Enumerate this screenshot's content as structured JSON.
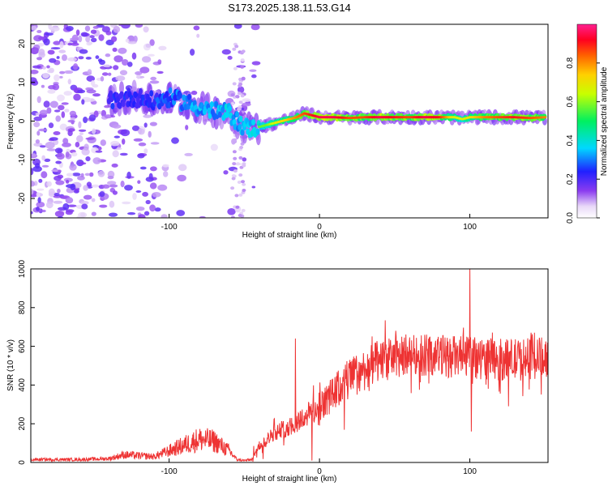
{
  "figure": {
    "title": "S173.2025.138.11.53.G14"
  },
  "chart_data": [
    {
      "type": "heatmap",
      "title": "S173.2025.138.11.53.G14",
      "xlabel": "Height of straight line (km)",
      "ylabel": "Frequency (Hz)",
      "xlim": [
        -192,
        152
      ],
      "ylim": [
        -25,
        25
      ],
      "x_ticks": [
        -100,
        0,
        100
      ],
      "x_tick_labels": [
        "-100",
        "0",
        "100"
      ],
      "y_ticks": [
        -20,
        -10,
        0,
        10,
        20
      ],
      "y_tick_labels": [
        "-20",
        "-10",
        "0",
        "10",
        "20"
      ],
      "grid": false,
      "colorbar": {
        "label": "Normalized spectral amplitude",
        "range": [
          0,
          1
        ],
        "ticks": [
          0.0,
          0.2,
          0.4,
          0.6,
          0.8
        ],
        "tick_labels": [
          "0.0",
          "0.2",
          "0.4",
          "0.6",
          "0.8"
        ],
        "colormap": "rainbow (white-violet-blue-cyan-green-yellow-orange-red-magenta)"
      },
      "ridge": {
        "description": "dominant frequency ridge vs height",
        "x": [
          -140,
          -130,
          -120,
          -110,
          -100,
          -90,
          -80,
          -70,
          -60,
          -55,
          -50,
          -45,
          -40,
          -35,
          -30,
          -25,
          -20,
          -15,
          -10,
          -5,
          0,
          10,
          20,
          30,
          40,
          50,
          60,
          70,
          80,
          90,
          95,
          100,
          110,
          120,
          130,
          140,
          150
        ],
        "freq": [
          5,
          6,
          6,
          5,
          6,
          5,
          3.5,
          2.5,
          2,
          0,
          -1.5,
          -2,
          -1.5,
          -1,
          -0.5,
          0,
          0.5,
          1,
          2,
          1.5,
          1,
          1,
          0.8,
          1,
          1,
          1,
          1,
          1,
          1,
          1,
          0.5,
          1,
          1,
          1,
          1,
          0.8,
          1
        ],
        "amplitude": [
          0.3,
          0.3,
          0.3,
          0.35,
          0.4,
          0.45,
          0.5,
          0.5,
          0.55,
          0.5,
          0.55,
          0.55,
          0.6,
          0.6,
          0.7,
          0.75,
          0.8,
          0.85,
          0.9,
          0.95,
          1.0,
          1.0,
          0.9,
          0.9,
          1.0,
          0.95,
          0.9,
          1.0,
          0.95,
          0.7,
          0.7,
          0.75,
          0.85,
          0.9,
          0.95,
          0.9,
          0.85
        ]
      }
    },
    {
      "type": "line",
      "xlabel": "Height of straight line (km)",
      "ylabel": "SNR (10 * v/v)",
      "xlim": [
        -192,
        152
      ],
      "ylim": [
        0,
        1000
      ],
      "x_ticks": [
        -100,
        0,
        100
      ],
      "x_tick_labels": [
        "-100",
        "0",
        "100"
      ],
      "y_ticks": [
        0,
        200,
        400,
        600,
        800,
        1000
      ],
      "y_tick_labels": [
        "0",
        "200",
        "400",
        "600",
        "800",
        "1000"
      ],
      "grid": false,
      "color": "#ee3333",
      "envelope": {
        "x": [
          -192,
          -160,
          -140,
          -130,
          -110,
          -100,
          -90,
          -80,
          -70,
          -60,
          -55,
          -50,
          -45,
          -40,
          -30,
          -20,
          -10,
          0,
          10,
          20,
          30,
          40,
          50,
          60,
          80,
          100,
          102,
          104,
          120,
          140,
          152
        ],
        "base": [
          15,
          15,
          20,
          40,
          30,
          60,
          90,
          120,
          110,
          60,
          15,
          10,
          15,
          80,
          150,
          180,
          230,
          280,
          350,
          420,
          470,
          510,
          530,
          550,
          540,
          530,
          530,
          530,
          520,
          520,
          540
        ]
      },
      "spikes": [
        {
          "x": 100,
          "y": 1000
        },
        {
          "x": 101,
          "y": 160
        },
        {
          "x": -16,
          "y": 640
        },
        {
          "x": -5,
          "y": 10
        }
      ]
    }
  ]
}
